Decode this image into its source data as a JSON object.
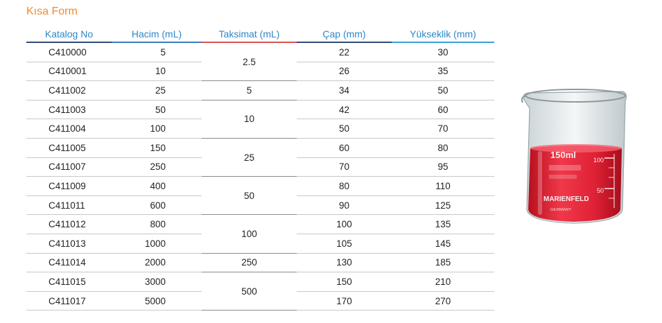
{
  "title": "Kısa Form",
  "headers": [
    "Katalog No",
    "Hacim (mL)",
    "Taksimat (mL)",
    "Çap (mm)",
    "Yükseklik (mm)"
  ],
  "rows": [
    {
      "catalog": "C410000",
      "volume": "5",
      "diameter": "22",
      "height": "30"
    },
    {
      "catalog": "C410001",
      "volume": "10",
      "diameter": "26",
      "height": "35"
    },
    {
      "catalog": "C411002",
      "volume": "25",
      "diameter": "34",
      "height": "50"
    },
    {
      "catalog": "C411003",
      "volume": "50",
      "diameter": "42",
      "height": "60"
    },
    {
      "catalog": "C411004",
      "volume": "100",
      "diameter": "50",
      "height": "70"
    },
    {
      "catalog": "C411005",
      "volume": "150",
      "diameter": "60",
      "height": "80"
    },
    {
      "catalog": "C411007",
      "volume": "250",
      "diameter": "70",
      "height": "95"
    },
    {
      "catalog": "C411009",
      "volume": "400",
      "diameter": "80",
      "height": "110"
    },
    {
      "catalog": "C411011",
      "volume": "600",
      "diameter": "90",
      "height": "125"
    },
    {
      "catalog": "C411012",
      "volume": "800",
      "diameter": "100",
      "height": "135"
    },
    {
      "catalog": "C411013",
      "volume": "1000",
      "diameter": "105",
      "height": "145"
    },
    {
      "catalog": "C411014",
      "volume": "2000",
      "diameter": "130",
      "height": "185"
    },
    {
      "catalog": "C411015",
      "volume": "3000",
      "diameter": "150",
      "height": "210"
    },
    {
      "catalog": "C411017",
      "volume": "5000",
      "diameter": "170",
      "height": "270"
    }
  ],
  "graduations": [
    {
      "value": "2.5",
      "span": 2
    },
    {
      "value": "5",
      "span": 1
    },
    {
      "value": "10",
      "span": 2
    },
    {
      "value": "25",
      "span": 2
    },
    {
      "value": "50",
      "span": 2
    },
    {
      "value": "100",
      "span": 2
    },
    {
      "value": "250",
      "span": 1
    },
    {
      "value": "500",
      "span": 2
    }
  ],
  "beaker": {
    "volume_label": "150ml",
    "scale_top": "100",
    "scale_mid": "50",
    "brand": "MARIENFELD",
    "country": "GERMANY",
    "liquid_color": "#e8243a"
  }
}
